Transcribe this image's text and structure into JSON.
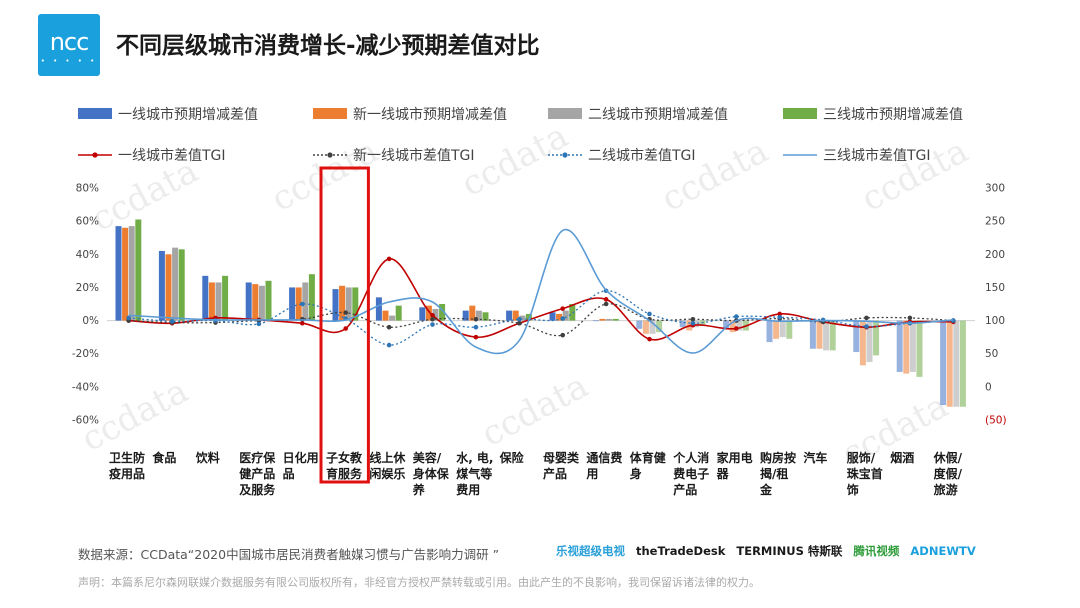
{
  "logo": {
    "text": "ncc",
    "dots": "• • • • •"
  },
  "title": "不同层级城市消费增长-减少预期差值对比",
  "watermark": "ccdata",
  "footer": {
    "source": "数据来源：CCData“2020中国城市居民消费者触媒习惯与广告影响力调研 ”",
    "disclaimer": "声明：本篇系尼尔森网联媒介数据服务有限公司版权所有，非经官方授权严禁转载或引用。由此产生的不良影响，我司保留诉诸法律的权力。",
    "sponsors": [
      "乐视超级电视",
      "theTradeDesk",
      "TERMINUS 特斯联",
      "腾讯视频",
      "ADNEWTV"
    ],
    "sponsor_colors": [
      "#2aa0d8",
      "#1a1a1a",
      "#1a1a1a",
      "#2e9c3a",
      "#1aa0dc"
    ]
  },
  "chart_data": {
    "type": "bar",
    "categories": [
      [
        "卫生防",
        "疫用品"
      ],
      [
        "食品"
      ],
      [
        "饮料"
      ],
      [
        "医疗保",
        "健产品",
        "及服务"
      ],
      [
        "日化用",
        "品"
      ],
      [
        "子女教",
        "育服务"
      ],
      [
        "线上休",
        "闲娱乐"
      ],
      [
        "美容/",
        "身体保",
        "养"
      ],
      [
        "水, 电,",
        "煤气等",
        "费用"
      ],
      [
        "保险"
      ],
      [
        "母婴类",
        "产品"
      ],
      [
        "通信费",
        "用"
      ],
      [
        "体育健",
        "身"
      ],
      [
        "个人消",
        "费电子",
        "产品"
      ],
      [
        "家用电",
        "器"
      ],
      [
        "购房按",
        "揭/租",
        "金"
      ],
      [
        "汽车"
      ],
      [
        "服饰/",
        "珠宝首",
        "饰"
      ],
      [
        "烟酒"
      ],
      [
        "休假/",
        "度假/",
        "旅游"
      ]
    ],
    "highlight_category": 5,
    "y_left": {
      "ticks": [
        "80%",
        "60%",
        "40%",
        "20%",
        "0%",
        "-20%",
        "-40%",
        "-60%"
      ],
      "range": [
        -60,
        80
      ]
    },
    "y_right": {
      "ticks": [
        "300",
        "250",
        "200",
        "150",
        "100",
        "50",
        "0",
        "(50)"
      ],
      "range": [
        -50,
        300
      ],
      "red_tick": "(50)"
    },
    "bar_series": [
      {
        "name": "一线城市预期增减差值",
        "color": "#4472c4",
        "values": [
          57,
          42,
          27,
          23,
          20,
          19,
          14,
          8,
          6,
          6,
          5,
          0,
          -5,
          -4,
          -5,
          -13,
          -17,
          -19,
          -31,
          -51
        ]
      },
      {
        "name": "新一线城市预期增减差值",
        "color": "#ed7d31",
        "values": [
          56,
          40,
          23,
          22,
          20,
          21,
          6,
          9,
          9,
          6,
          4,
          1,
          -8,
          -6,
          -7,
          -11,
          -17,
          -27,
          -32,
          -52
        ]
      },
      {
        "name": "二线城市预期增减差值",
        "color": "#a5a5a5",
        "values": [
          57,
          44,
          23,
          21,
          23,
          20,
          3,
          7,
          6,
          3,
          6,
          1,
          -8,
          -4,
          -6,
          -10,
          -18,
          -25,
          -31,
          -52
        ]
      },
      {
        "name": "三线城市预期增减差值",
        "color": "#70ad47",
        "values": [
          61,
          43,
          27,
          24,
          28,
          20,
          9,
          10,
          5,
          4,
          10,
          1,
          -7,
          -3,
          -6,
          -11,
          -18,
          -21,
          -34,
          -52
        ]
      }
    ],
    "line_series": [
      {
        "name": "一线城市差值TGI",
        "color": "#c00000",
        "style": "solid",
        "markers": true,
        "values": [
          100,
          96,
          104,
          101,
          96,
          88,
          193,
          108,
          75,
          96,
          118,
          132,
          72,
          93,
          88,
          110,
          98,
          90,
          98,
          98
        ]
      },
      {
        "name": "新一线城市差值TGI",
        "color": "#404040",
        "style": "dotted",
        "markers": true,
        "values": [
          100,
          97,
          97,
          100,
          102,
          112,
          90,
          102,
          102,
          96,
          78,
          125,
          102,
          102,
          100,
          103,
          98,
          104,
          104,
          100
        ]
      },
      {
        "name": "二线城市差值TGI",
        "color": "#2e75b6",
        "style": "dotted",
        "markers": true,
        "values": [
          104,
          99,
          100,
          95,
          125,
          103,
          63,
          94,
          90,
          102,
          103,
          145,
          110,
          96,
          106,
          105,
          101,
          91,
          96,
          100
        ]
      },
      {
        "name": "三线城市差值TGI",
        "color": "#5b9bd5",
        "style": "solid",
        "markers": false,
        "values": [
          108,
          104,
          101,
          101,
          101,
          101,
          128,
          128,
          60,
          70,
          236,
          146,
          100,
          51,
          100,
          99,
          100,
          99,
          96,
          101
        ]
      }
    ]
  }
}
